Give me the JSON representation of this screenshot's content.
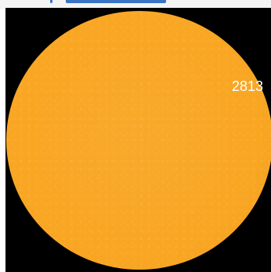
{
  "image": {
    "colors": {
      "background": "#000000",
      "sun": "#F9A623",
      "sun_edge": "#F59F1D",
      "label": "#FFFFFF",
      "top_strip": "#F4F4F4",
      "top_mark": "#3B74C4"
    },
    "sunspot_region_label": "2813"
  }
}
